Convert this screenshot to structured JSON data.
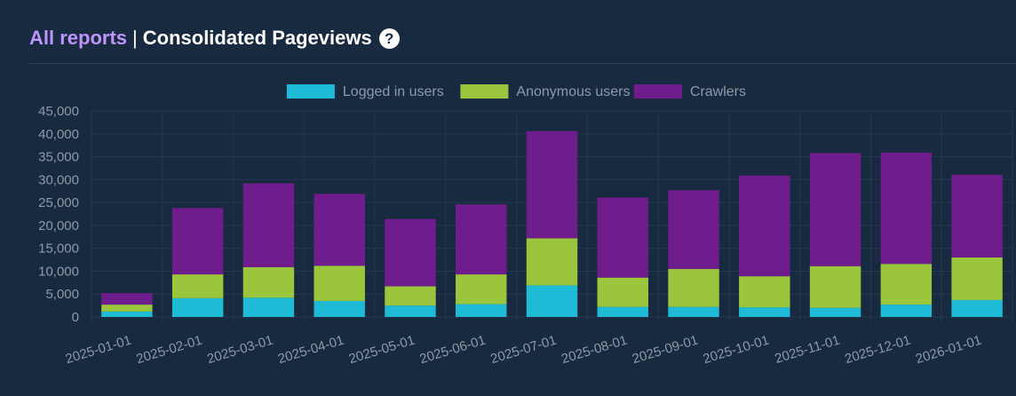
{
  "header": {
    "link_label": "All reports",
    "separator": "|",
    "title": "Consolidated Pageviews",
    "help_icon": "question-circle-icon"
  },
  "chart_data": {
    "type": "bar",
    "stacked": true,
    "categories": [
      "2025-01-01",
      "2025-02-01",
      "2025-03-01",
      "2025-04-01",
      "2025-05-01",
      "2025-06-01",
      "2025-07-01",
      "2025-08-01",
      "2025-09-01",
      "2025-10-01",
      "2025-11-01",
      "2025-12-01",
      "2026-01-01"
    ],
    "series": [
      {
        "name": "Logged in users",
        "color": "#1fbad6",
        "values": [
          1200,
          4100,
          4200,
          3500,
          2500,
          2800,
          6900,
          2200,
          2200,
          2100,
          2000,
          2700,
          3700
        ]
      },
      {
        "name": "Anonymous users",
        "color": "#9bc53d",
        "values": [
          1500,
          5200,
          6700,
          7700,
          4200,
          6500,
          10300,
          6400,
          8300,
          6800,
          9100,
          8900,
          9300
        ]
      },
      {
        "name": "Crawlers",
        "color": "#6f1d8c",
        "values": [
          2500,
          14500,
          18300,
          15700,
          14700,
          15300,
          23400,
          17500,
          17200,
          22000,
          24700,
          24300,
          18100
        ]
      }
    ],
    "ylim": [
      0,
      45000
    ],
    "yticks": [
      "0",
      "5,000",
      "10,000",
      "15,000",
      "20,000",
      "25,000",
      "30,000",
      "35,000",
      "40,000",
      "45,000"
    ],
    "ytick_values": [
      0,
      5000,
      10000,
      15000,
      20000,
      25000,
      30000,
      35000,
      40000,
      45000
    ],
    "legend_position": "top",
    "grid": true,
    "title": "",
    "xlabel": "",
    "ylabel": ""
  }
}
